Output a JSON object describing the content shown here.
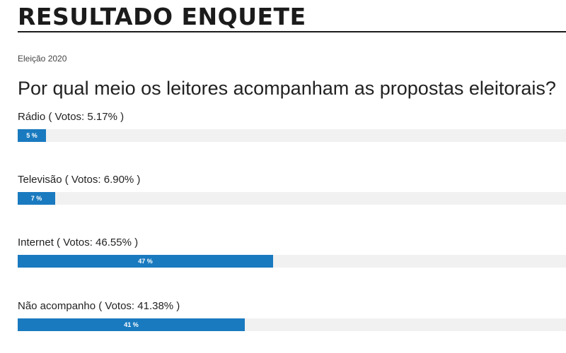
{
  "header": {
    "title": "RESULTADO ENQUETE"
  },
  "poll": {
    "category": "Eleição 2020",
    "question": "Por qual meio os leitores acompanham as propostas eleitorais?",
    "options": [
      {
        "label": "Rádio ( Votos: 5.17% )",
        "percent": 5.17,
        "bar_text": "5 %"
      },
      {
        "label": "Televisão ( Votos: 6.90% )",
        "percent": 6.9,
        "bar_text": "7 %"
      },
      {
        "label": "Internet ( Votos: 46.55% )",
        "percent": 46.55,
        "bar_text": "47 %"
      },
      {
        "label": "Não acompanho ( Votos: 41.38% )",
        "percent": 41.38,
        "bar_text": "41 %"
      }
    ]
  },
  "colors": {
    "bar_fill": "#1a7abf",
    "bar_track": "#f1f1f1"
  }
}
